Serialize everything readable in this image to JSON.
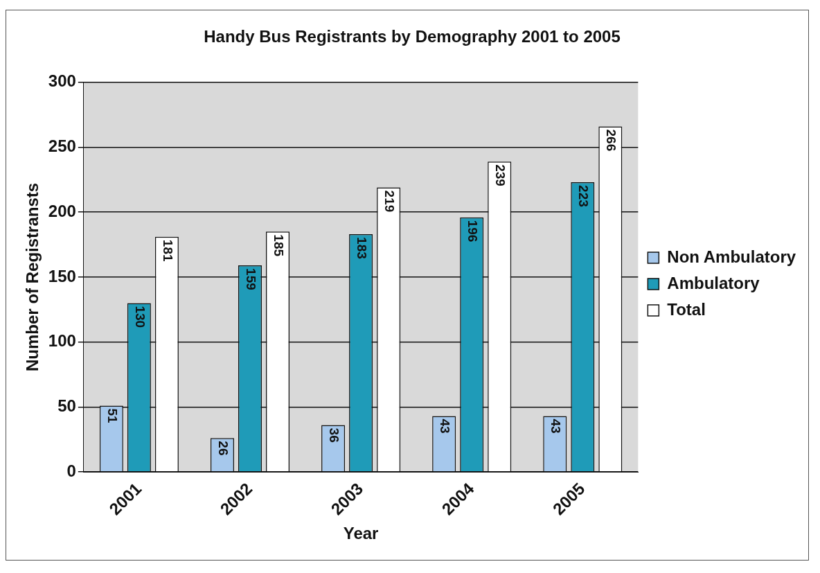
{
  "chart_data": {
    "type": "bar",
    "title": "Handy Bus Registrants by Demography 2001 to 2005",
    "xlabel": "Year",
    "ylabel": "Number of Registransts",
    "categories": [
      "2001",
      "2002",
      "2003",
      "2004",
      "2005"
    ],
    "series": [
      {
        "name": "Non Ambulatory",
        "color": "#a6c8ec",
        "values": [
          51,
          26,
          36,
          43,
          43
        ]
      },
      {
        "name": "Ambulatory",
        "color": "#1f9bb8",
        "values": [
          130,
          159,
          183,
          196,
          223
        ]
      },
      {
        "name": "Total",
        "color": "#ffffff",
        "values": [
          181,
          185,
          219,
          239,
          266
        ]
      }
    ],
    "ylim": [
      0,
      300
    ],
    "yticks": [
      0,
      50,
      100,
      150,
      200,
      250,
      300
    ],
    "grid": "y",
    "legend": "right",
    "data_labels": true
  }
}
